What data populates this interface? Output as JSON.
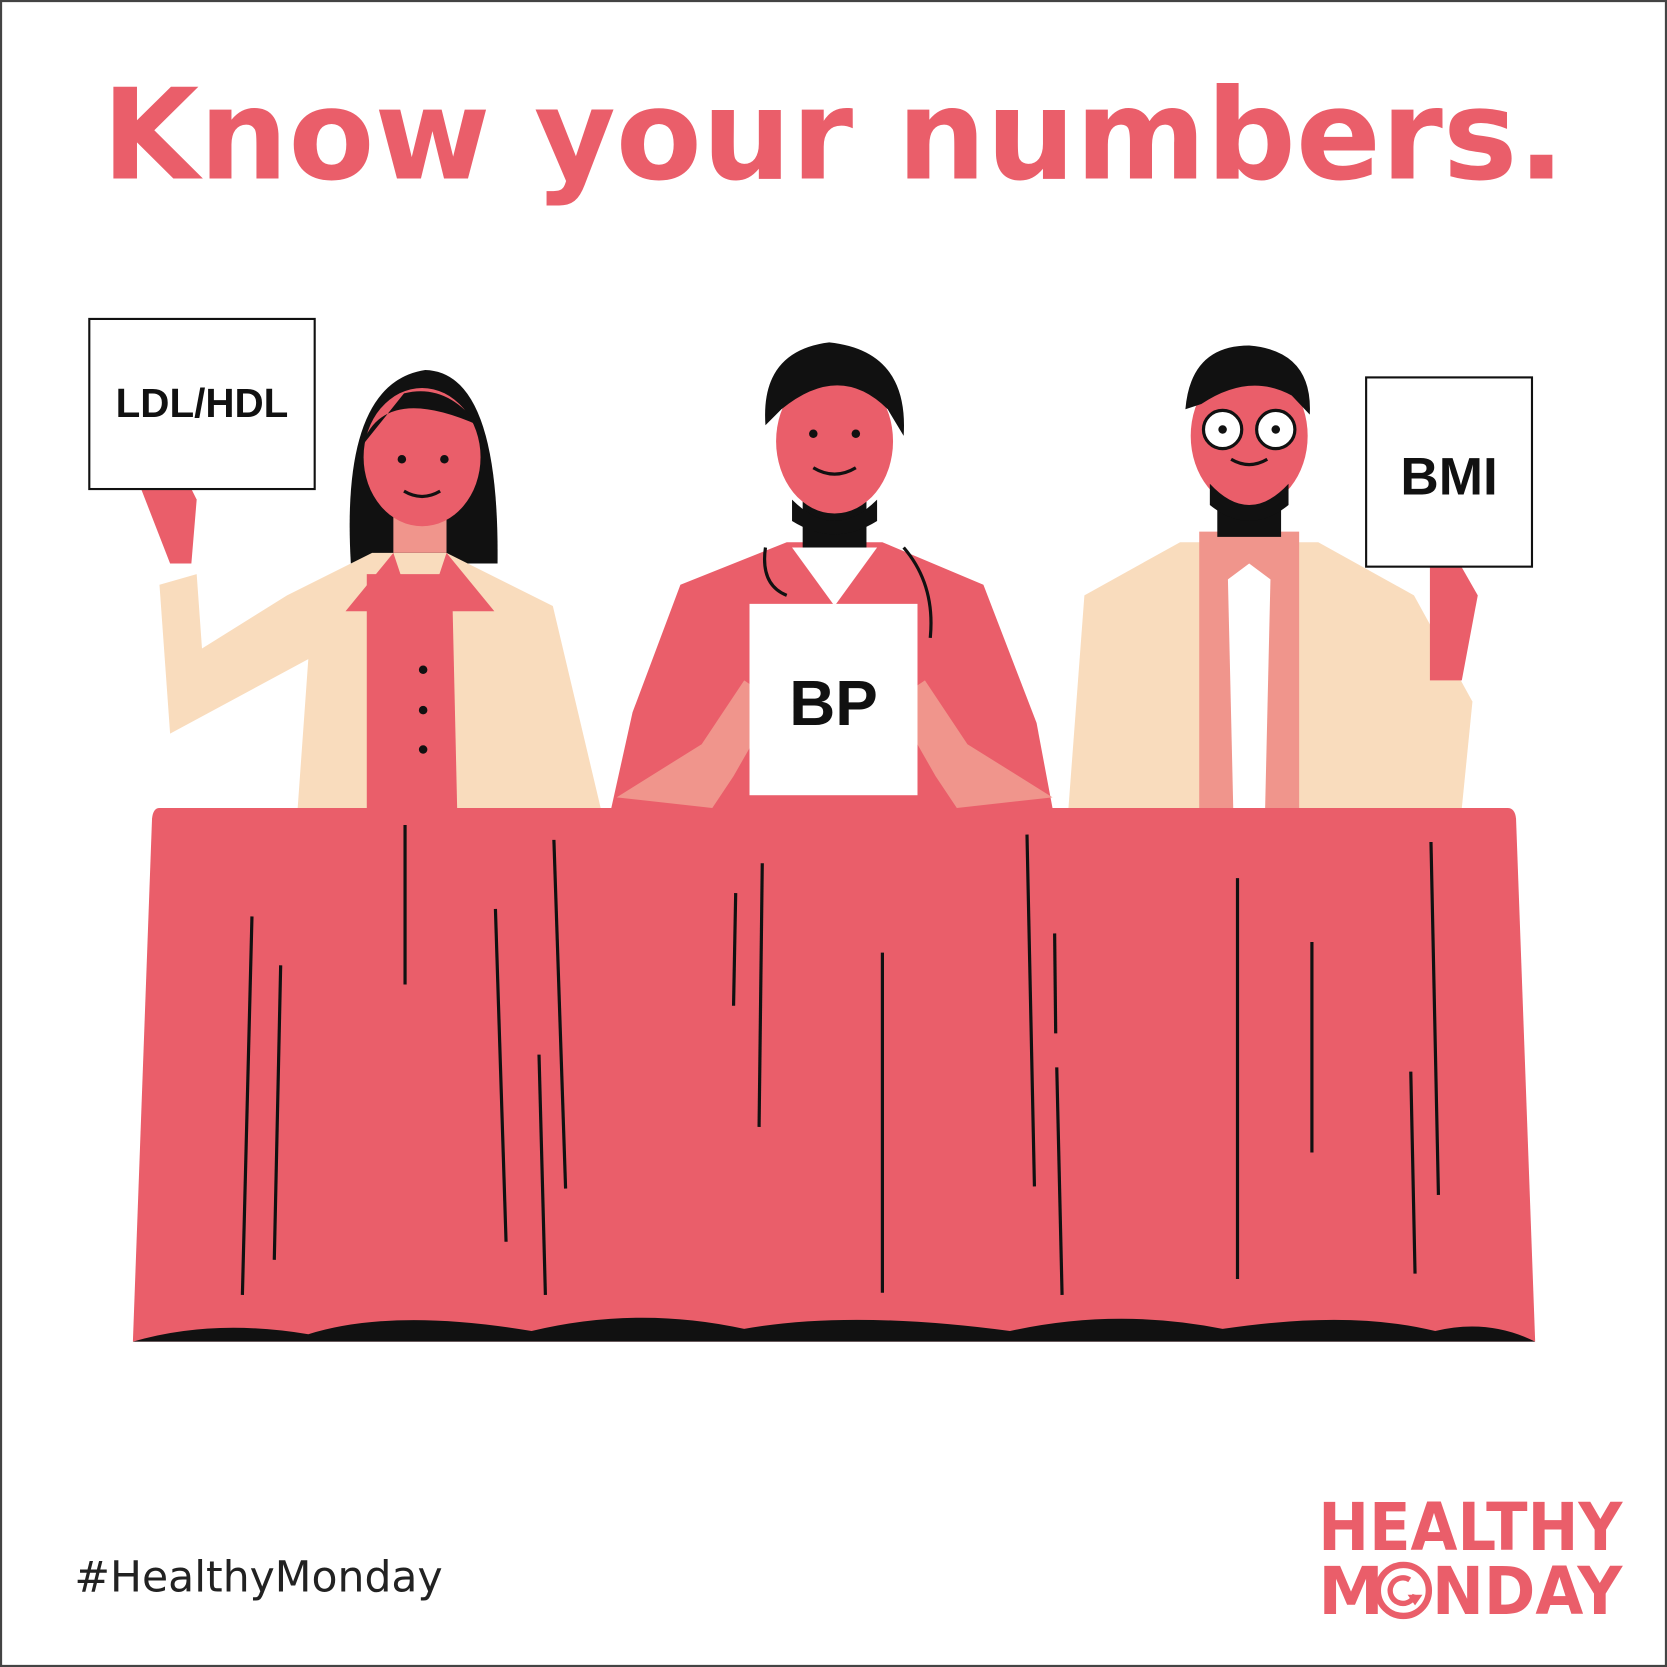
{
  "poster": {
    "headline": "Know your numbers.",
    "signs": {
      "left": "LDL/HDL",
      "center": "BP",
      "right": "BMI"
    },
    "hashtag": "#HealthyMonday",
    "logo": {
      "line1": "HEALTHY",
      "line2_m": "M",
      "line2_rest": "NDAY"
    }
  },
  "colors": {
    "brand": "#ea5e6a",
    "skin": "#e9707a",
    "coat": "#f9dcbd",
    "shirt": "#f0958c",
    "ink": "#111111"
  }
}
